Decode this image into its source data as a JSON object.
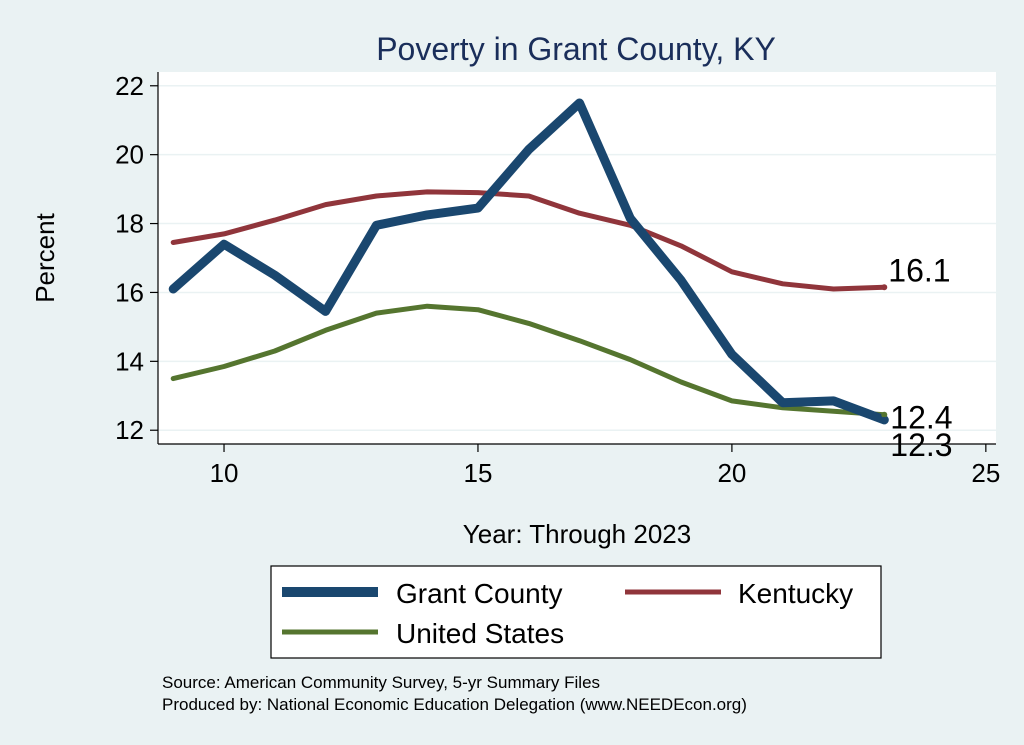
{
  "chart_data": {
    "type": "line",
    "title": "Poverty in Grant County, KY",
    "xlabel": "Year: Through 2023",
    "ylabel": "Percent",
    "xlim": [
      8.7,
      25.2
    ],
    "ylim": [
      11.6,
      22.4
    ],
    "xticks": [
      10,
      15,
      20,
      25
    ],
    "yticks": [
      12,
      14,
      16,
      18,
      20,
      22
    ],
    "x": [
      9,
      10,
      11,
      12,
      13,
      14,
      15,
      16,
      17,
      18,
      19,
      20,
      21,
      22,
      23
    ],
    "series": [
      {
        "name": "Grant County",
        "color": "#1a476f",
        "values": [
          16.1,
          17.4,
          16.5,
          15.45,
          17.95,
          18.25,
          18.45,
          20.15,
          21.5,
          18.15,
          16.35,
          14.2,
          12.8,
          12.85,
          12.3
        ]
      },
      {
        "name": "Kentucky",
        "color": "#90353b",
        "values": [
          17.45,
          17.7,
          18.1,
          18.55,
          18.8,
          18.92,
          18.9,
          18.8,
          18.3,
          17.95,
          17.35,
          16.6,
          16.25,
          16.1,
          16.15
        ]
      },
      {
        "name": "United States",
        "color": "#55752f",
        "values": [
          13.5,
          13.85,
          14.3,
          14.9,
          15.4,
          15.6,
          15.5,
          15.1,
          14.6,
          14.05,
          13.4,
          12.85,
          12.65,
          12.55,
          12.45
        ]
      }
    ],
    "end_labels": [
      {
        "series": "Kentucky",
        "text": "16.1"
      },
      {
        "series": "United States",
        "text": "12.4"
      },
      {
        "series": "Grant County",
        "text": "12.3"
      }
    ],
    "legend": {
      "placement": "bottom",
      "entries": [
        "Grant County",
        "Kentucky",
        "United States"
      ]
    },
    "grid": true
  },
  "source_note": {
    "line1": "Source: American Community Survey, 5-yr Summary Files",
    "line2": "Produced by: National Economic Education Delegation (www.NEEDEcon.org)"
  }
}
